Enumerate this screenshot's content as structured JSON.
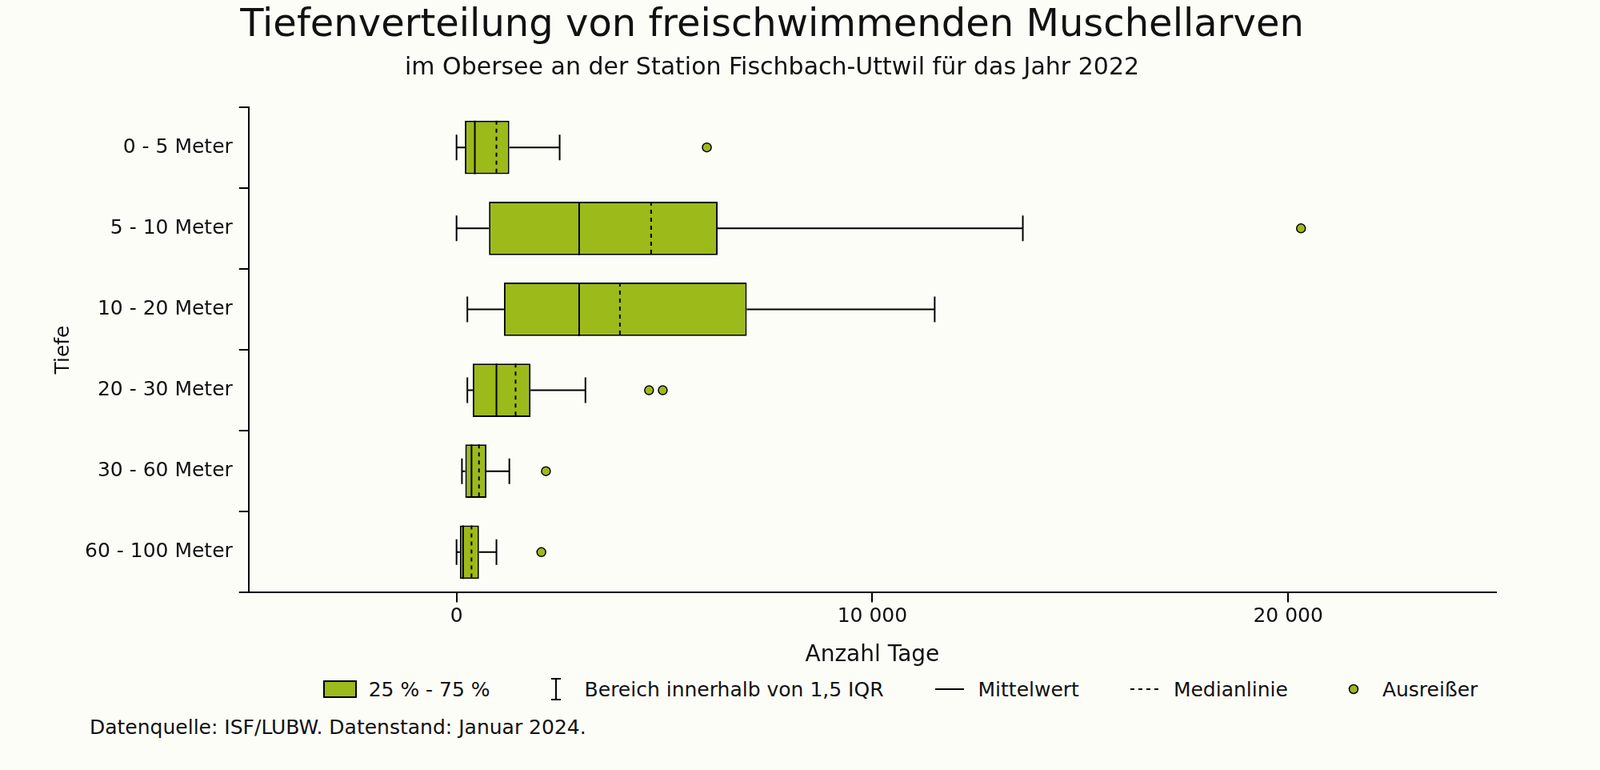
{
  "chart_data": {
    "type": "boxplot",
    "orientation": "horizontal",
    "title": "Tiefenverteilung von freischwimmenden Muschellarven",
    "subtitle": "im Obersee an der Station Fischbach-Uttwil für das Jahr 2022",
    "x_label": "Anzahl Tage",
    "y_label": "Tiefe",
    "categories": [
      "0 - 5 Meter",
      "5 - 10 Meter",
      "10 - 20 Meter",
      "20 - 30 Meter",
      "30 - 60 Meter",
      "60 - 100 Meter"
    ],
    "boxes": [
      {
        "whisker_low": 0,
        "q1": 200,
        "mean": 440,
        "median": 960,
        "q3": 1270,
        "whisker_high": 2480,
        "outliers": [
          6020
        ]
      },
      {
        "whisker_low": 0,
        "q1": 780,
        "mean": 2950,
        "median": 4680,
        "q3": 6280,
        "whisker_high": 13620,
        "outliers": [
          20310
        ]
      },
      {
        "whisker_low": 260,
        "q1": 1140,
        "mean": 2950,
        "median": 3930,
        "q3": 6980,
        "whisker_high": 11500,
        "outliers": []
      },
      {
        "whisker_low": 260,
        "q1": 390,
        "mean": 960,
        "median": 1420,
        "q3": 1780,
        "whisker_high": 3100,
        "outliers": [
          4630,
          4960
        ]
      },
      {
        "whisker_low": 130,
        "q1": 210,
        "mean": 360,
        "median": 540,
        "q3": 720,
        "whisker_high": 1270,
        "outliers": [
          2150
        ]
      },
      {
        "whisker_low": 0,
        "q1": 80,
        "mean": 160,
        "median": 360,
        "q3": 540,
        "whisker_high": 960,
        "outliers": [
          2040
        ]
      }
    ],
    "color": "#9cba1a",
    "xlim": [
      -5000,
      25000
    ],
    "xticks": [
      {
        "value": 0,
        "label": "0"
      },
      {
        "value": 10000,
        "label": "10 000"
      },
      {
        "value": 20000,
        "label": "20 000"
      }
    ],
    "grid": false,
    "legend": "bottom",
    "legend_entries": [
      {
        "name": "25 % - 75 %",
        "marker": "box"
      },
      {
        "name": "Bereich innerhalb von 1,5 IQR",
        "marker": "whisker"
      },
      {
        "name": "Mittelwert",
        "marker": "solid"
      },
      {
        "name": "Medianlinie",
        "marker": "dashed"
      },
      {
        "name": "Ausreißer",
        "marker": "dot"
      }
    ],
    "source": "Datenquelle: ISF/LUBW. Datenstand: Januar 2024."
  }
}
